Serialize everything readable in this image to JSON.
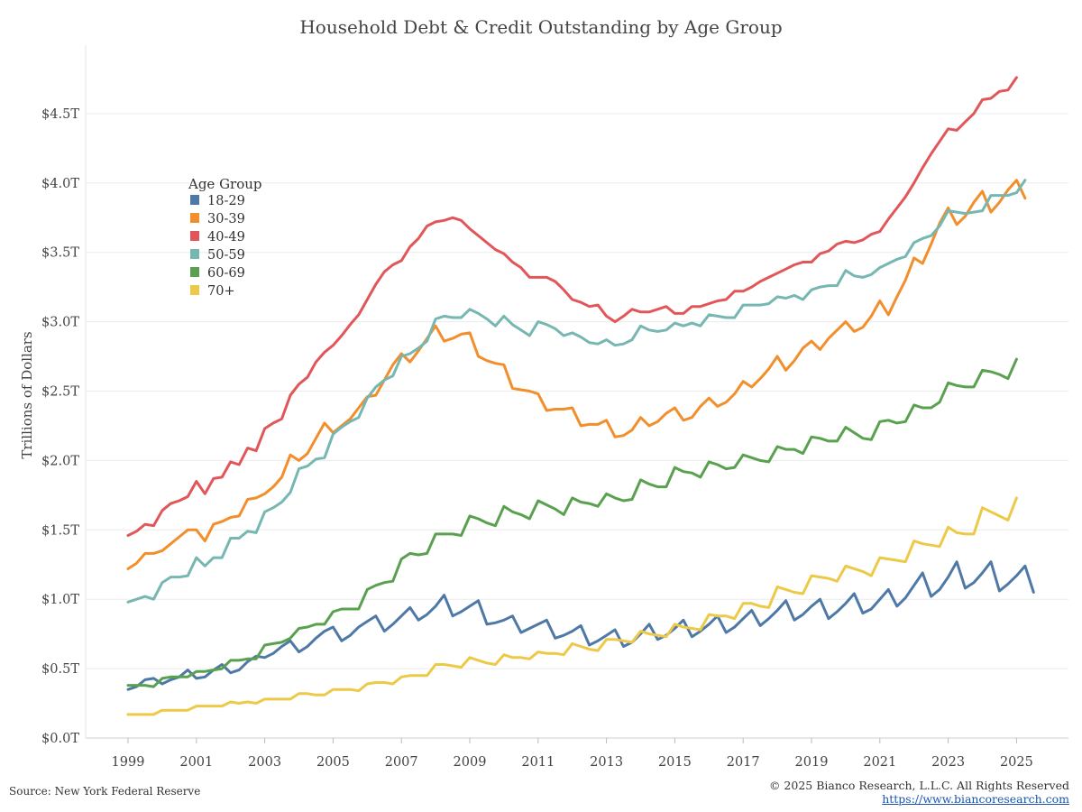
{
  "chart_data": {
    "type": "line",
    "title": "Household Debt & Credit Outstanding by Age Group",
    "ylabel": "Trillions of Dollars",
    "xlabel": "",
    "x_start": 1999,
    "x_step": 0.25,
    "xlim": [
      1999,
      2025.25
    ],
    "ylim": [
      0,
      5.0
    ],
    "y_ticks": [
      0,
      0.5,
      1.0,
      1.5,
      2.0,
      2.5,
      3.0,
      3.5,
      4.0,
      4.5
    ],
    "y_tick_labels": [
      "$0.0T",
      "$0.5T",
      "$1.0T",
      "$1.5T",
      "$2.0T",
      "$2.5T",
      "$3.0T",
      "$3.5T",
      "$4.0T",
      "$4.5T"
    ],
    "x_ticks": [
      1999,
      2001,
      2003,
      2005,
      2007,
      2009,
      2011,
      2013,
      2015,
      2017,
      2019,
      2021,
      2023,
      2025
    ],
    "x_tick_labels": [
      "1999",
      "2001",
      "2003",
      "2005",
      "2007",
      "2009",
      "2011",
      "2013",
      "2015",
      "2017",
      "2019",
      "2021",
      "2023",
      "2025"
    ],
    "grid": "horizontal",
    "legend": {
      "title": "Age Group",
      "placement": "upper-left"
    },
    "series": [
      {
        "name": "18-29",
        "color": "#4e79a7",
        "values": [
          0.35,
          0.37,
          0.42,
          0.43,
          0.39,
          0.42,
          0.44,
          0.49,
          0.43,
          0.44,
          0.49,
          0.53,
          0.47,
          0.49,
          0.55,
          0.59,
          0.58,
          0.61,
          0.66,
          0.7,
          0.62,
          0.66,
          0.72,
          0.77,
          0.8,
          0.7,
          0.74,
          0.8,
          0.84,
          0.88,
          0.77,
          0.82,
          0.88,
          0.94,
          0.85,
          0.89,
          0.95,
          1.03,
          0.88,
          0.91,
          0.95,
          0.99,
          0.82,
          0.83,
          0.85,
          0.88,
          0.76,
          0.79,
          0.82,
          0.85,
          0.72,
          0.74,
          0.77,
          0.81,
          0.67,
          0.7,
          0.74,
          0.78,
          0.66,
          0.69,
          0.75,
          0.82,
          0.71,
          0.74,
          0.79,
          0.85,
          0.73,
          0.77,
          0.82,
          0.88,
          0.76,
          0.8,
          0.86,
          0.92,
          0.81,
          0.86,
          0.92,
          0.99,
          0.85,
          0.89,
          0.95,
          1.0,
          0.86,
          0.91,
          0.97,
          1.04,
          0.9,
          0.93,
          1.0,
          1.07,
          0.95,
          1.01,
          1.1,
          1.19,
          1.02,
          1.07,
          1.16,
          1.27,
          1.08,
          1.12,
          1.19,
          1.27,
          1.06,
          1.11,
          1.17,
          1.24,
          1.05
        ]
      },
      {
        "name": "30-39",
        "color": "#f28e2b",
        "values": [
          1.22,
          1.26,
          1.33,
          1.33,
          1.35,
          1.4,
          1.45,
          1.5,
          1.5,
          1.42,
          1.54,
          1.56,
          1.59,
          1.6,
          1.72,
          1.73,
          1.76,
          1.81,
          1.88,
          2.04,
          2.0,
          2.05,
          2.16,
          2.27,
          2.2,
          2.25,
          2.3,
          2.38,
          2.46,
          2.47,
          2.58,
          2.69,
          2.77,
          2.71,
          2.79,
          2.88,
          2.97,
          2.86,
          2.88,
          2.91,
          2.92,
          2.75,
          2.72,
          2.7,
          2.69,
          2.52,
          2.51,
          2.5,
          2.48,
          2.36,
          2.37,
          2.37,
          2.38,
          2.25,
          2.26,
          2.26,
          2.29,
          2.17,
          2.18,
          2.22,
          2.31,
          2.25,
          2.28,
          2.34,
          2.38,
          2.29,
          2.31,
          2.39,
          2.45,
          2.39,
          2.42,
          2.48,
          2.57,
          2.53,
          2.59,
          2.66,
          2.75,
          2.65,
          2.72,
          2.81,
          2.86,
          2.8,
          2.88,
          2.94,
          3.0,
          2.93,
          2.96,
          3.04,
          3.15,
          3.05,
          3.18,
          3.3,
          3.46,
          3.42,
          3.56,
          3.71,
          3.82,
          3.7,
          3.76,
          3.86,
          3.94,
          3.79,
          3.86,
          3.95,
          4.02,
          3.89
        ]
      },
      {
        "name": "40-49",
        "color": "#e15759",
        "values": [
          1.46,
          1.49,
          1.54,
          1.53,
          1.64,
          1.69,
          1.71,
          1.74,
          1.85,
          1.76,
          1.87,
          1.88,
          1.99,
          1.97,
          2.09,
          2.07,
          2.23,
          2.27,
          2.3,
          2.47,
          2.55,
          2.6,
          2.71,
          2.78,
          2.83,
          2.9,
          2.98,
          3.05,
          3.16,
          3.27,
          3.36,
          3.41,
          3.44,
          3.54,
          3.6,
          3.69,
          3.72,
          3.73,
          3.75,
          3.73,
          3.67,
          3.62,
          3.57,
          3.52,
          3.49,
          3.43,
          3.39,
          3.32,
          3.32,
          3.32,
          3.29,
          3.23,
          3.16,
          3.14,
          3.11,
          3.12,
          3.04,
          3.0,
          3.04,
          3.09,
          3.07,
          3.07,
          3.09,
          3.11,
          3.06,
          3.06,
          3.11,
          3.11,
          3.13,
          3.15,
          3.16,
          3.22,
          3.22,
          3.25,
          3.29,
          3.32,
          3.35,
          3.38,
          3.41,
          3.43,
          3.43,
          3.49,
          3.51,
          3.56,
          3.58,
          3.57,
          3.59,
          3.63,
          3.65,
          3.74,
          3.82,
          3.9,
          4.0,
          4.11,
          4.21,
          4.3,
          4.39,
          4.38,
          4.44,
          4.5,
          4.6,
          4.61,
          4.66,
          4.67,
          4.76
        ]
      },
      {
        "name": "50-59",
        "color": "#76b7b2",
        "values": [
          0.98,
          1.0,
          1.02,
          1.0,
          1.12,
          1.16,
          1.16,
          1.17,
          1.3,
          1.24,
          1.3,
          1.3,
          1.44,
          1.44,
          1.49,
          1.48,
          1.63,
          1.66,
          1.7,
          1.77,
          1.94,
          1.96,
          2.01,
          2.02,
          2.19,
          2.24,
          2.28,
          2.31,
          2.45,
          2.53,
          2.58,
          2.61,
          2.75,
          2.77,
          2.81,
          2.86,
          3.02,
          3.04,
          3.03,
          3.03,
          3.09,
          3.06,
          3.02,
          2.97,
          3.04,
          2.98,
          2.94,
          2.9,
          3.0,
          2.98,
          2.95,
          2.9,
          2.92,
          2.89,
          2.85,
          2.84,
          2.87,
          2.83,
          2.84,
          2.87,
          2.97,
          2.94,
          2.93,
          2.94,
          2.99,
          2.97,
          2.99,
          2.97,
          3.05,
          3.04,
          3.03,
          3.03,
          3.12,
          3.12,
          3.12,
          3.13,
          3.18,
          3.17,
          3.19,
          3.16,
          3.23,
          3.25,
          3.26,
          3.26,
          3.37,
          3.33,
          3.32,
          3.34,
          3.39,
          3.42,
          3.45,
          3.47,
          3.57,
          3.6,
          3.62,
          3.69,
          3.8,
          3.79,
          3.78,
          3.79,
          3.8,
          3.91,
          3.91,
          3.91,
          3.93,
          4.02
        ]
      },
      {
        "name": "60-69",
        "color": "#59a14f",
        "values": [
          0.38,
          0.38,
          0.38,
          0.37,
          0.43,
          0.44,
          0.44,
          0.44,
          0.48,
          0.48,
          0.49,
          0.5,
          0.56,
          0.56,
          0.57,
          0.57,
          0.67,
          0.68,
          0.69,
          0.72,
          0.79,
          0.8,
          0.82,
          0.82,
          0.91,
          0.93,
          0.93,
          0.93,
          1.07,
          1.1,
          1.12,
          1.13,
          1.29,
          1.33,
          1.32,
          1.33,
          1.47,
          1.47,
          1.47,
          1.46,
          1.6,
          1.58,
          1.55,
          1.53,
          1.67,
          1.63,
          1.61,
          1.58,
          1.71,
          1.68,
          1.65,
          1.61,
          1.73,
          1.7,
          1.69,
          1.67,
          1.76,
          1.73,
          1.71,
          1.72,
          1.86,
          1.83,
          1.81,
          1.81,
          1.95,
          1.92,
          1.91,
          1.88,
          1.99,
          1.97,
          1.94,
          1.95,
          2.04,
          2.02,
          2.0,
          1.99,
          2.1,
          2.08,
          2.08,
          2.05,
          2.17,
          2.16,
          2.14,
          2.14,
          2.24,
          2.2,
          2.16,
          2.15,
          2.28,
          2.29,
          2.27,
          2.28,
          2.4,
          2.38,
          2.38,
          2.42,
          2.56,
          2.54,
          2.53,
          2.53,
          2.65,
          2.64,
          2.62,
          2.59,
          2.73
        ]
      },
      {
        "name": "70+",
        "color": "#edc948",
        "values": [
          0.17,
          0.17,
          0.17,
          0.17,
          0.2,
          0.2,
          0.2,
          0.2,
          0.23,
          0.23,
          0.23,
          0.23,
          0.26,
          0.25,
          0.26,
          0.25,
          0.28,
          0.28,
          0.28,
          0.28,
          0.32,
          0.32,
          0.31,
          0.31,
          0.35,
          0.35,
          0.35,
          0.34,
          0.39,
          0.4,
          0.4,
          0.39,
          0.44,
          0.45,
          0.45,
          0.45,
          0.53,
          0.53,
          0.52,
          0.51,
          0.58,
          0.56,
          0.54,
          0.53,
          0.6,
          0.58,
          0.58,
          0.57,
          0.62,
          0.61,
          0.61,
          0.6,
          0.68,
          0.66,
          0.64,
          0.63,
          0.71,
          0.71,
          0.7,
          0.69,
          0.77,
          0.75,
          0.74,
          0.73,
          0.82,
          0.8,
          0.79,
          0.78,
          0.89,
          0.88,
          0.88,
          0.86,
          0.97,
          0.97,
          0.95,
          0.94,
          1.09,
          1.07,
          1.05,
          1.04,
          1.17,
          1.16,
          1.15,
          1.13,
          1.24,
          1.22,
          1.2,
          1.17,
          1.3,
          1.29,
          1.28,
          1.27,
          1.42,
          1.4,
          1.39,
          1.38,
          1.52,
          1.48,
          1.47,
          1.47,
          1.66,
          1.63,
          1.6,
          1.57,
          1.73
        ]
      }
    ]
  },
  "footer": {
    "source": "Source: New York Federal Reserve",
    "copyright": "© 2025 Bianco Research, L.L.C. All Rights Reserved",
    "url": "https://www.biancoresearch.com"
  }
}
